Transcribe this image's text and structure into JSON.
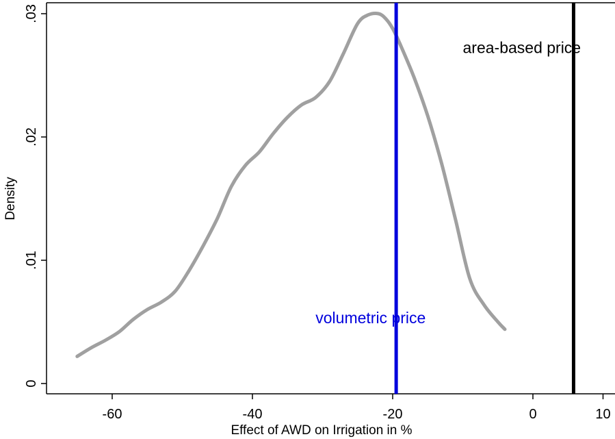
{
  "chart_data": {
    "type": "line",
    "title": "",
    "xlabel": "Effect of AWD on Irrigation in %",
    "ylabel": "Density",
    "xlim": [
      -67,
      10
    ],
    "ylim": [
      -0.0003,
      0.031
    ],
    "x_ticks": [
      -60,
      -40,
      -20,
      0,
      10
    ],
    "x_tick_labels": [
      "-60",
      "-40",
      "-20",
      "0",
      "10"
    ],
    "y_ticks": [
      0,
      0.01,
      0.02,
      0.03
    ],
    "y_tick_labels": [
      "0",
      ".01",
      ".02",
      ".03"
    ],
    "grid": false,
    "series": [
      {
        "color": "#a0a0a0",
        "x": [
          -65,
          -63,
          -61,
          -59,
          -57,
          -55,
          -53,
          -51,
          -49,
          -47,
          -45,
          -43,
          -41,
          -39,
          -37,
          -35,
          -33,
          -31,
          -29,
          -27,
          -25,
          -23.5,
          -22,
          -21,
          -20,
          -19,
          -17,
          -15,
          -13,
          -11,
          -9,
          -7,
          -5,
          -4
        ],
        "y": [
          0.0022,
          0.0029,
          0.0035,
          0.0042,
          0.0052,
          0.006,
          0.0066,
          0.0075,
          0.0092,
          0.0112,
          0.0134,
          0.016,
          0.0177,
          0.0188,
          0.0203,
          0.0216,
          0.0226,
          0.0232,
          0.0245,
          0.0268,
          0.0292,
          0.0299,
          0.03,
          0.0296,
          0.0288,
          0.0276,
          0.0249,
          0.0217,
          0.0178,
          0.0132,
          0.0085,
          0.0064,
          0.005,
          0.0044
        ]
      }
    ],
    "vlines": [
      {
        "x": -19.5,
        "color": "#0000dd",
        "label": "volumetric price",
        "label_x": -31,
        "label_y": 0.0049
      },
      {
        "x": 5.8,
        "color": "#000000",
        "label": "area-based price",
        "label_x": -10,
        "label_y": 0.0268
      }
    ]
  }
}
